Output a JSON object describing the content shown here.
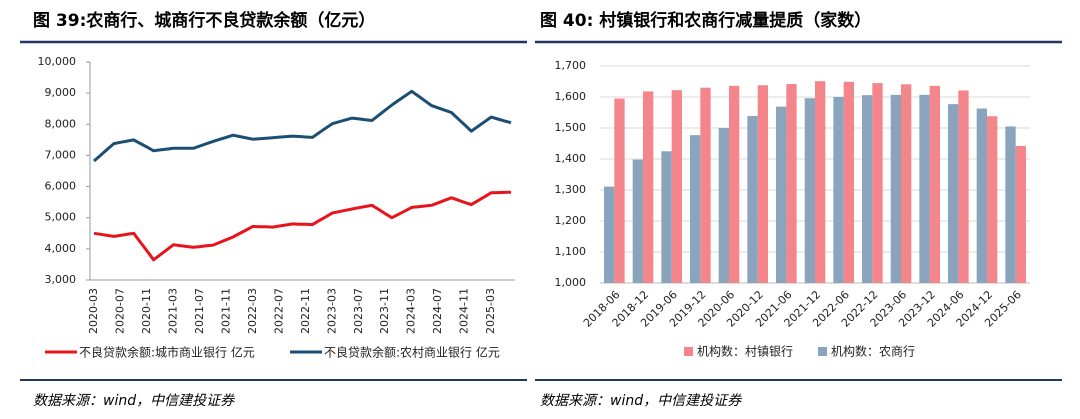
{
  "chart_data": [
    {
      "type": "line",
      "title": "图 39:农商行、城商行不良贷款余额（亿元）",
      "source": "数据来源：wind，中信建投证券",
      "categories": [
        "2020-03",
        null,
        null,
        null,
        "2020-07",
        null,
        null,
        null,
        "2020-11",
        null,
        null,
        null,
        "2021-03",
        null,
        null,
        null,
        "2021-07",
        null,
        null,
        null,
        "2021-11",
        null,
        null,
        null,
        "2022-03",
        null,
        null,
        null,
        "2022-07",
        null,
        null,
        null,
        "2022-11",
        null,
        null,
        null,
        "2023-03",
        null,
        null,
        null,
        "2023-07",
        null,
        null,
        null,
        "2023-11",
        null,
        null,
        null,
        "2024-03",
        null,
        null,
        null,
        "2024-07",
        null,
        null,
        null,
        "2024-11",
        null,
        null,
        null,
        "2025-03",
        null,
        null,
        null
      ],
      "series": [
        {
          "name": "不良贷款余额:城市商业银行 亿元",
          "color": "#e8141c",
          "values": [
            4500,
            4467,
            4433,
            4400,
            4433,
            4467,
            4500,
            4217,
            3933,
            3650,
            3810,
            3970,
            4130,
            4103,
            4077,
            4050,
            4073,
            4097,
            4120,
            4207,
            4293,
            4380,
            4493,
            4607,
            4720,
            4713,
            4707,
            4700,
            4733,
            4767,
            4800,
            4793,
            4787,
            4780,
            4903,
            5027,
            5150,
            5193,
            5237,
            5280,
            5320,
            5360,
            5400,
            5267,
            5133,
            5000,
            5110,
            5220,
            5330,
            5353,
            5377,
            5400,
            5480,
            5560,
            5640,
            5567,
            5493,
            5420,
            5547,
            5673,
            5800,
            5807,
            5813,
            5820
          ]
        },
        {
          "name": "不良贷款余额:农村商业银行 亿元",
          "color": "#1a4e73",
          "values": [
            6820,
            7007,
            7193,
            7380,
            7420,
            7460,
            7500,
            7383,
            7267,
            7150,
            7177,
            7203,
            7230,
            7230,
            7230,
            7230,
            7303,
            7377,
            7450,
            7517,
            7583,
            7650,
            7607,
            7563,
            7520,
            7537,
            7553,
            7570,
            7587,
            7603,
            7620,
            7607,
            7593,
            7580,
            7727,
            7873,
            8020,
            8080,
            8140,
            8200,
            8173,
            8147,
            8120,
            8287,
            8453,
            8620,
            8767,
            8913,
            9060,
            8907,
            8753,
            8600,
            8527,
            8453,
            8380,
            8180,
            7980,
            7780,
            7930,
            8080,
            8230,
            8170,
            8110,
            8050
          ]
        }
      ],
      "ylim": [
        3000,
        10000
      ],
      "yticks": [
        {
          "value": 3000,
          "label": "3,000"
        },
        {
          "value": 4000,
          "label": "4,000"
        },
        {
          "value": 5000,
          "label": "5,000"
        },
        {
          "value": 6000,
          "label": "6,000"
        },
        {
          "value": 7000,
          "label": "7,000"
        },
        {
          "value": 8000,
          "label": "8,000"
        },
        {
          "value": 9000,
          "label": "9,000"
        },
        {
          "value": 10000,
          "label": "10,000"
        }
      ],
      "grid": false
    },
    {
      "type": "bar",
      "title": "图 40: 村镇银行和农商行减量提质（家数）",
      "source": "数据来源：wind，中信建投证券",
      "categories": [
        "2018-06",
        "2018-12",
        "2019-06",
        "2019-12",
        "2020-06",
        "2020-12",
        "2021-06",
        "2021-12",
        "2022-06",
        "2022-12",
        "2023-06",
        "2023-12",
        "2024-06",
        "2024-12",
        "2025-06"
      ],
      "series": [
        {
          "name": "机构数：村镇银行",
          "color": "#f4858a",
          "values": [
            1595,
            1618,
            1622,
            1630,
            1636,
            1638,
            1642,
            1651,
            1649,
            1645,
            1641,
            1636,
            1621,
            1538,
            1442
          ]
        },
        {
          "name": "机构数：农商行",
          "color": "#8ba4be",
          "values": [
            1311,
            1398,
            1425,
            1477,
            1500,
            1539,
            1569,
            1596,
            1600,
            1606,
            1607,
            1607,
            1577,
            1563,
            1505
          ]
        }
      ],
      "ylim": [
        1000,
        1700
      ],
      "yticks": [
        {
          "value": 1000,
          "label": "1,000"
        },
        {
          "value": 1100,
          "label": "1,100"
        },
        {
          "value": 1200,
          "label": "1,200"
        },
        {
          "value": 1300,
          "label": "1,300"
        },
        {
          "value": 1400,
          "label": "1,400"
        },
        {
          "value": 1500,
          "label": "1,500"
        },
        {
          "value": 1600,
          "label": "1,600"
        },
        {
          "value": 1700,
          "label": "1,700"
        }
      ],
      "grid": true
    }
  ]
}
